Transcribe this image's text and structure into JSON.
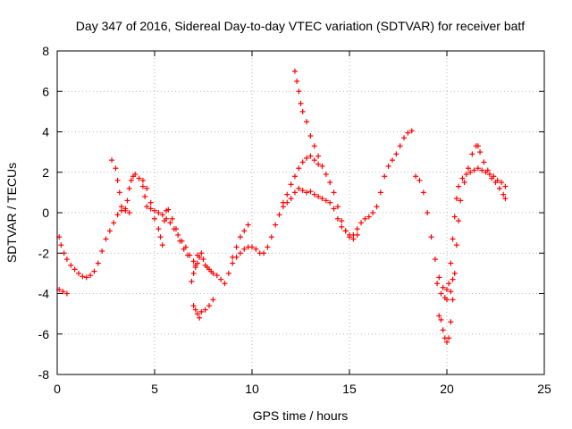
{
  "chart_data": {
    "type": "scatter",
    "title": "Day 347 of 2016, Sidereal Day-to-day VTEC variation (SDTVAR) for receiver batf",
    "xlabel": "GPS time / hours",
    "ylabel": "SDTVAR / TECUs",
    "xlim": [
      0,
      25
    ],
    "ylim": [
      -8,
      8
    ],
    "grid": true,
    "marker": "+",
    "color": "#ff0000",
    "x_ticks": [
      "0",
      "5",
      "10",
      "15",
      "20",
      "25"
    ],
    "y_ticks": [
      "-8",
      "-6",
      "-4",
      "-2",
      "0",
      "2",
      "4",
      "6",
      "8"
    ],
    "series": [
      {
        "name": "SDTVAR",
        "points": [
          [
            0.1,
            -1.2
          ],
          [
            0.2,
            -1.6
          ],
          [
            0.35,
            -2.0
          ],
          [
            0.5,
            -2.3
          ],
          [
            0.7,
            -2.6
          ],
          [
            0.9,
            -2.8
          ],
          [
            1.1,
            -3.0
          ],
          [
            1.3,
            -3.15
          ],
          [
            1.5,
            -3.2
          ],
          [
            1.7,
            -3.1
          ],
          [
            1.9,
            -2.9
          ],
          [
            2.1,
            -2.5
          ],
          [
            2.3,
            -1.9
          ],
          [
            2.5,
            -1.3
          ],
          [
            2.7,
            -0.9
          ],
          [
            2.9,
            -0.5
          ],
          [
            3.1,
            -0.1
          ],
          [
            3.3,
            0.1
          ],
          [
            3.5,
            0.2
          ],
          [
            3.6,
            0.6
          ],
          [
            3.7,
            1.2
          ],
          [
            3.8,
            1.6
          ],
          [
            3.9,
            1.8
          ],
          [
            4.0,
            1.9
          ],
          [
            4.2,
            1.7
          ],
          [
            4.4,
            1.3
          ],
          [
            4.5,
            0.8
          ],
          [
            4.6,
            0.3
          ],
          [
            4.8,
            0.2
          ],
          [
            5.0,
            0.1
          ],
          [
            5.2,
            0.0
          ],
          [
            5.4,
            -0.1
          ],
          [
            5.6,
            -0.3
          ],
          [
            5.8,
            -0.5
          ],
          [
            6.0,
            -0.8
          ],
          [
            6.2,
            -1.1
          ],
          [
            6.4,
            -1.4
          ],
          [
            6.6,
            -1.7
          ],
          [
            6.8,
            -2.1
          ],
          [
            7.0,
            -2.4
          ],
          [
            7.1,
            -2.7
          ],
          [
            7.2,
            -2.5
          ],
          [
            7.3,
            -2.2
          ],
          [
            7.4,
            -2.0
          ],
          [
            7.5,
            -2.3
          ],
          [
            7.6,
            -2.6
          ],
          [
            7.7,
            -2.7
          ],
          [
            7.8,
            -2.8
          ],
          [
            7.9,
            -2.9
          ],
          [
            8.0,
            -3.0
          ],
          [
            8.2,
            -3.1
          ],
          [
            8.4,
            -3.3
          ],
          [
            8.6,
            -3.5
          ],
          [
            8.8,
            -3.0
          ],
          [
            9.0,
            -2.5
          ],
          [
            9.2,
            -2.2
          ],
          [
            9.4,
            -2.0
          ],
          [
            9.6,
            -1.8
          ],
          [
            9.8,
            -1.7
          ],
          [
            10.0,
            -1.7
          ],
          [
            10.2,
            -1.8
          ],
          [
            10.4,
            -2.0
          ],
          [
            10.6,
            -2.0
          ],
          [
            10.8,
            -1.7
          ],
          [
            11.0,
            -1.2
          ],
          [
            11.2,
            -0.6
          ],
          [
            11.4,
            -0.1
          ],
          [
            11.6,
            0.3
          ],
          [
            11.8,
            0.5
          ],
          [
            12.0,
            0.7
          ],
          [
            12.2,
            1.0
          ],
          [
            12.4,
            1.2
          ],
          [
            12.6,
            1.1
          ],
          [
            12.8,
            1.0
          ],
          [
            13.0,
            1.05
          ],
          [
            13.2,
            0.9
          ],
          [
            13.4,
            0.8
          ],
          [
            13.6,
            0.7
          ],
          [
            13.8,
            0.6
          ],
          [
            14.0,
            0.5
          ],
          [
            14.2,
            0.2
          ],
          [
            14.4,
            -0.3
          ],
          [
            14.6,
            -0.7
          ],
          [
            14.8,
            -0.9
          ],
          [
            15.0,
            -1.1
          ],
          [
            15.2,
            -1.1
          ],
          [
            15.4,
            -0.8
          ],
          [
            15.6,
            -0.5
          ],
          [
            15.8,
            -0.3
          ],
          [
            16.0,
            -0.2
          ],
          [
            16.2,
            0.0
          ],
          [
            16.4,
            0.3
          ],
          [
            16.6,
            1.0
          ],
          [
            16.8,
            1.8
          ],
          [
            17.0,
            2.3
          ],
          [
            17.2,
            2.6
          ],
          [
            17.4,
            2.9
          ],
          [
            17.6,
            3.3
          ],
          [
            17.8,
            3.7
          ],
          [
            18.0,
            3.95
          ],
          [
            18.2,
            4.05
          ],
          [
            18.4,
            1.8
          ],
          [
            18.6,
            1.6
          ],
          [
            18.8,
            1.0
          ],
          [
            19.0,
            0.0
          ],
          [
            19.2,
            -1.2
          ],
          [
            19.4,
            -2.3
          ],
          [
            19.6,
            -3.2
          ],
          [
            19.8,
            -3.7
          ],
          [
            20.0,
            -3.8
          ],
          [
            20.1,
            -3.5
          ],
          [
            20.2,
            -2.5
          ],
          [
            20.3,
            -1.3
          ],
          [
            20.4,
            -0.2
          ],
          [
            20.5,
            0.7
          ],
          [
            20.6,
            1.3
          ],
          [
            20.8,
            1.7
          ],
          [
            21.0,
            1.9
          ],
          [
            21.2,
            2.0
          ],
          [
            21.4,
            2.1
          ],
          [
            21.6,
            2.2
          ],
          [
            21.8,
            2.1
          ],
          [
            22.0,
            2.0
          ],
          [
            22.2,
            1.9
          ],
          [
            22.4,
            1.8
          ],
          [
            22.6,
            1.6
          ],
          [
            22.8,
            1.5
          ],
          [
            23.0,
            1.3
          ],
          [
            0.1,
            -3.8
          ],
          [
            0.3,
            -3.9
          ],
          [
            0.5,
            -4.0
          ],
          [
            2.8,
            2.6
          ],
          [
            3.0,
            2.2
          ],
          [
            3.1,
            1.6
          ],
          [
            3.2,
            1.0
          ],
          [
            3.3,
            0.3
          ],
          [
            3.5,
            0.1
          ],
          [
            3.7,
            0.0
          ],
          [
            4.4,
            1.6
          ],
          [
            4.6,
            1.2
          ],
          [
            4.8,
            0.5
          ],
          [
            5.0,
            -0.3
          ],
          [
            5.2,
            -0.8
          ],
          [
            5.3,
            -1.2
          ],
          [
            5.4,
            -1.6
          ],
          [
            5.5,
            -0.4
          ],
          [
            5.6,
            0.1
          ],
          [
            5.7,
            0.15
          ],
          [
            5.9,
            -0.3
          ],
          [
            6.1,
            -0.8
          ],
          [
            6.3,
            -1.4
          ],
          [
            6.5,
            -1.8
          ],
          [
            6.7,
            -2.1
          ],
          [
            7.0,
            -4.6
          ],
          [
            7.1,
            -4.8
          ],
          [
            7.2,
            -5.0
          ],
          [
            7.3,
            -5.2
          ],
          [
            7.4,
            -4.9
          ],
          [
            7.6,
            -4.8
          ],
          [
            7.8,
            -4.6
          ],
          [
            8.0,
            -4.3
          ],
          [
            6.9,
            -3.4
          ],
          [
            7.0,
            -3.0
          ],
          [
            7.1,
            -2.6
          ],
          [
            7.2,
            -2.1
          ],
          [
            9.0,
            -2.2
          ],
          [
            9.2,
            -1.7
          ],
          [
            9.4,
            -1.2
          ],
          [
            9.6,
            -0.9
          ],
          [
            9.8,
            -0.6
          ],
          [
            12.2,
            7.0
          ],
          [
            12.3,
            6.5
          ],
          [
            12.4,
            6.0
          ],
          [
            12.5,
            5.4
          ],
          [
            12.6,
            5.0
          ],
          [
            12.8,
            4.5
          ],
          [
            13.0,
            3.8
          ],
          [
            13.2,
            3.3
          ],
          [
            13.4,
            2.8
          ],
          [
            13.6,
            2.3
          ],
          [
            13.8,
            1.9
          ],
          [
            14.0,
            1.5
          ],
          [
            14.2,
            1.0
          ],
          [
            14.4,
            0.3
          ],
          [
            14.6,
            -0.4
          ],
          [
            14.8,
            -0.9
          ],
          [
            15.0,
            -1.2
          ],
          [
            15.2,
            -1.3
          ],
          [
            15.4,
            -1.1
          ],
          [
            11.6,
            0.5
          ],
          [
            11.8,
            0.9
          ],
          [
            12.0,
            1.4
          ],
          [
            12.2,
            1.8
          ],
          [
            12.4,
            2.2
          ],
          [
            12.6,
            2.5
          ],
          [
            12.8,
            2.7
          ],
          [
            13.0,
            2.8
          ],
          [
            13.2,
            2.6
          ],
          [
            13.4,
            2.4
          ],
          [
            19.6,
            -5.1
          ],
          [
            19.7,
            -5.3
          ],
          [
            19.8,
            -5.8
          ],
          [
            19.9,
            -6.2
          ],
          [
            20.0,
            -6.4
          ],
          [
            20.1,
            -6.2
          ],
          [
            20.2,
            -5.4
          ],
          [
            20.3,
            -4.3
          ],
          [
            20.4,
            -3.0
          ],
          [
            20.5,
            -1.6
          ],
          [
            20.6,
            -0.4
          ],
          [
            20.7,
            0.6
          ],
          [
            20.9,
            1.5
          ],
          [
            21.1,
            2.2
          ],
          [
            21.3,
            2.9
          ],
          [
            21.5,
            3.3
          ],
          [
            21.6,
            3.3
          ],
          [
            21.7,
            3.0
          ],
          [
            21.9,
            2.5
          ],
          [
            22.1,
            2.1
          ],
          [
            22.3,
            1.7
          ],
          [
            22.5,
            1.5
          ],
          [
            22.7,
            1.2
          ],
          [
            22.9,
            0.9
          ],
          [
            23.0,
            0.7
          ],
          [
            19.5,
            -3.5
          ],
          [
            19.7,
            -4.0
          ],
          [
            19.9,
            -4.2
          ],
          [
            20.0,
            -4.3
          ],
          [
            20.2,
            -3.9
          ],
          [
            20.3,
            -3.3
          ]
        ]
      }
    ]
  }
}
